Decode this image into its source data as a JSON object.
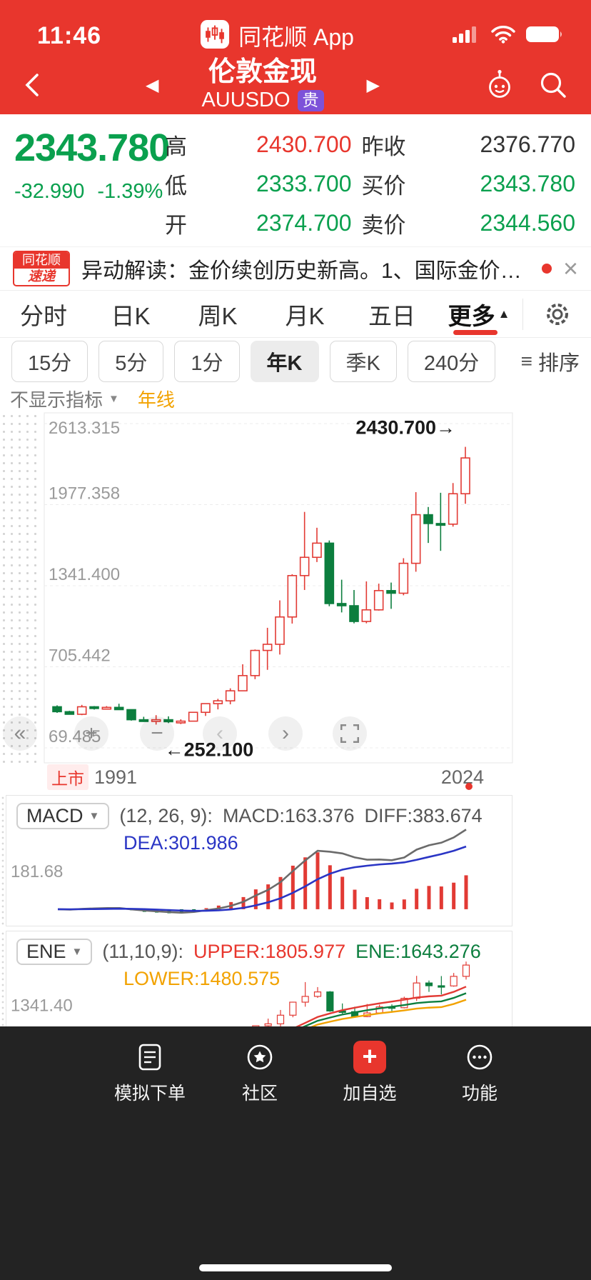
{
  "status": {
    "time": "11:46",
    "app_name": "同花顺 App"
  },
  "nav": {
    "title": "伦敦金现",
    "symbol": "AUUSDO",
    "badge": "贵"
  },
  "quote": {
    "price": "2343.780",
    "change": "-32.990",
    "change_pct": "-1.39%",
    "stats": [
      {
        "label": "高",
        "value": "2430.700"
      },
      {
        "label": "昨收",
        "value": "2376.770"
      },
      {
        "label": "低",
        "value": "2333.700"
      },
      {
        "label": "买价",
        "value": "2343.780"
      },
      {
        "label": "开",
        "value": "2374.700"
      },
      {
        "label": "卖价",
        "value": "2344.560"
      }
    ]
  },
  "ticker": {
    "logo_top": "同花顺",
    "logo_bottom": "速递",
    "text": "异动解读：金价续创历史新高。1、国际金价昨..."
  },
  "tabs": [
    {
      "label": "分时"
    },
    {
      "label": "日K"
    },
    {
      "label": "周K"
    },
    {
      "label": "月K"
    },
    {
      "label": "五日"
    },
    {
      "label": "更多"
    }
  ],
  "subtabs": [
    {
      "label": "15分"
    },
    {
      "label": "5分"
    },
    {
      "label": "1分"
    },
    {
      "label": "年K"
    },
    {
      "label": "季K"
    },
    {
      "label": "240分"
    }
  ],
  "sort": {
    "label": "排序"
  },
  "indicator_bar": {
    "selector": "不显示指标",
    "line": "年线"
  },
  "axis": {
    "listed": "上市",
    "start": "1991",
    "end": "2024"
  },
  "macd_header": {
    "name": "MACD",
    "params": "(12, 26, 9):",
    "macd": "MACD:163.376",
    "diff": "DIFF:383.674",
    "dea": "DEA:301.986"
  },
  "ene_header": {
    "name": "ENE",
    "params": "(11,10,9):",
    "upper": "UPPER:1805.977",
    "ene": "ENE:1643.276",
    "lower": "LOWER:1480.575"
  },
  "tabbar": {
    "items": [
      {
        "label": "模拟下单"
      },
      {
        "label": "社区"
      },
      {
        "label": "加自选"
      },
      {
        "label": "功能"
      }
    ]
  },
  "icons": {
    "back": "‹",
    "prev": "◀",
    "next": "▶",
    "dropdown": "▼",
    "more_up": "▲",
    "close": "×",
    "sort": "≡",
    "zoom_in": "+",
    "zoom_out": "−",
    "pan_left": "‹",
    "pan_right": "›",
    "collapse": "«",
    "add": "+"
  },
  "chart_data": {
    "type": "candlestick",
    "title": "伦敦金现 年K 1991-2024",
    "x": [
      1991,
      1992,
      1993,
      1994,
      1995,
      1996,
      1997,
      1998,
      1999,
      2000,
      2001,
      2002,
      2003,
      2004,
      2005,
      2006,
      2007,
      2008,
      2009,
      2010,
      2011,
      2012,
      2013,
      2014,
      2015,
      2016,
      2017,
      2018,
      2019,
      2020,
      2021,
      2022,
      2023,
      2024
    ],
    "ohlc": [
      [
        392.0,
        403.0,
        344.0,
        353.2
      ],
      [
        353.2,
        360.1,
        330.2,
        332.9
      ],
      [
        332.9,
        406.7,
        326.1,
        391.7
      ],
      [
        391.7,
        397.5,
        369.7,
        383.2
      ],
      [
        383.2,
        396.9,
        372.4,
        387.0
      ],
      [
        387.0,
        415.5,
        367.4,
        369.3
      ],
      [
        369.3,
        370.0,
        283.0,
        290.2
      ],
      [
        290.2,
        313.2,
        273.4,
        288.2
      ],
      [
        288.2,
        326.2,
        252.1,
        290.3
      ],
      [
        290.3,
        316.6,
        263.8,
        274.5
      ],
      [
        274.5,
        293.3,
        256.0,
        279.0
      ],
      [
        279.0,
        349.3,
        277.8,
        348.2
      ],
      [
        348.2,
        416.8,
        319.9,
        416.3
      ],
      [
        416.3,
        454.2,
        371.3,
        438.4
      ],
      [
        438.4,
        536.5,
        411.1,
        517.1
      ],
      [
        517.1,
        725.0,
        516.2,
        636.3
      ],
      [
        636.3,
        841.1,
        608.4,
        833.8
      ],
      [
        833.8,
        1011.3,
        681.5,
        881.9
      ],
      [
        881.9,
        1226.4,
        801.5,
        1096.2
      ],
      [
        1096.2,
        1431.3,
        1044.5,
        1420.8
      ],
      [
        1420.8,
        1920.3,
        1308.0,
        1564.1
      ],
      [
        1564.1,
        1796.1,
        1527.0,
        1675.4
      ],
      [
        1675.4,
        1696.3,
        1180.5,
        1201.6
      ],
      [
        1201.6,
        1388.5,
        1131.9,
        1184.4
      ],
      [
        1184.4,
        1307.8,
        1046.2,
        1061.0
      ],
      [
        1061.0,
        1375.3,
        1046.4,
        1152.0
      ],
      [
        1152.0,
        1357.6,
        1146.5,
        1303.0
      ],
      [
        1303.0,
        1366.1,
        1160.1,
        1282.5
      ],
      [
        1282.5,
        1557.1,
        1266.3,
        1517.2
      ],
      [
        1517.2,
        2075.5,
        1451.1,
        1898.4
      ],
      [
        1898.4,
        1959.0,
        1676.9,
        1829.2
      ],
      [
        1829.2,
        2070.4,
        1614.9,
        1824.3
      ],
      [
        1824.3,
        2146.8,
        1804.7,
        2062.9
      ],
      [
        2062.9,
        2430.7,
        1984.0,
        2343.78
      ]
    ],
    "ylim": [
      69.485,
      2613.315
    ],
    "yticks": [
      2613.315,
      1977.358,
      1341.4,
      705.442,
      69.485
    ],
    "colors": {
      "up": "#e23a34",
      "down": "#0c7e3e",
      "grid": "#ececec"
    },
    "annotations": [
      {
        "text": "2430.700→",
        "value": 2430.7,
        "anchor": "last-high"
      },
      {
        "text": "←252.100",
        "value": 252.1,
        "anchor": "min-low",
        "index": 8
      }
    ],
    "panels": [
      {
        "name": "MACD",
        "type": "macd",
        "params": [
          12,
          26,
          9
        ],
        "last": {
          "macd": 163.376,
          "diff": 383.674,
          "dea": 301.986
        },
        "ylabel": 181.68,
        "colors": {
          "diff": "#6b6b6b",
          "dea": "#2a35c5"
        }
      },
      {
        "name": "ENE",
        "type": "ene",
        "params": [
          11,
          10,
          9
        ],
        "last": {
          "upper": 1805.977,
          "ene": 1643.276,
          "lower": 1480.575
        },
        "ylabel": 1341.4,
        "ylim": [
          230,
          2470
        ],
        "colors": {
          "upper": "#e23a34",
          "ene": "#0c7e3e",
          "lower": "#f2a200"
        }
      }
    ]
  }
}
